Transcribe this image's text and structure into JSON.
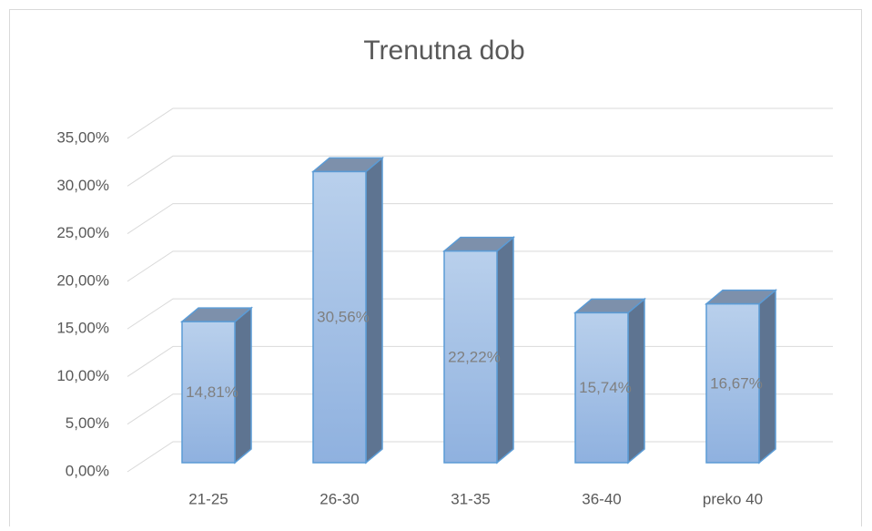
{
  "chart_data": {
    "type": "bar3d",
    "title": "Trenutna dob",
    "categories": [
      "21-25",
      "26-30",
      "31-35",
      "36-40",
      "preko 40"
    ],
    "values": [
      14.81,
      30.56,
      22.22,
      15.74,
      16.67
    ],
    "value_labels": [
      "14,81%",
      "30,56%",
      "22,22%",
      "15,74%",
      "16,67%"
    ],
    "color": "#9dbde6",
    "ylim": [
      0,
      35
    ],
    "yticks": [
      {
        "value": 0,
        "label": "0,00%"
      },
      {
        "value": 5,
        "label": "5,00%"
      },
      {
        "value": 10,
        "label": "10,00%"
      },
      {
        "value": 15,
        "label": "15,00%"
      },
      {
        "value": 20,
        "label": "20,00%"
      },
      {
        "value": 25,
        "label": "25,00%"
      },
      {
        "value": 30,
        "label": "30,00%"
      },
      {
        "value": 35,
        "label": "35,00%"
      }
    ],
    "grid": true
  }
}
